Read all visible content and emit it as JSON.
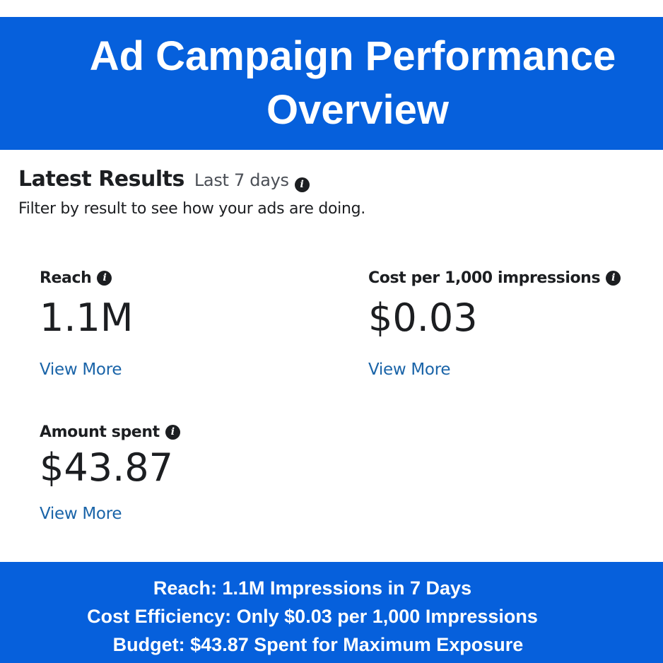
{
  "banner": {
    "title_line1": "Ad Campaign Performance",
    "title_line2": "Overview"
  },
  "results": {
    "heading": "Latest Results",
    "period": "Last 7 days",
    "subtitle": "Filter by result to see how your ads are doing.",
    "info_glyph": "i"
  },
  "metrics": [
    {
      "label": "Reach",
      "value": "1.1M",
      "link": "View More"
    },
    {
      "label": "Cost per 1,000 impressions",
      "value": "$0.03",
      "link": "View More"
    },
    {
      "label": "Amount spent",
      "value": "$43.87",
      "link": "View More"
    }
  ],
  "summary": {
    "line1": "Reach: 1.1M Impressions in 7 Days",
    "line2": "Cost Efficiency: Only $0.03 per 1,000 Impressions",
    "line3": "Budget: $43.87 Spent for Maximum Exposure"
  },
  "colors": {
    "banner_blue": "#0660dc",
    "link_blue": "#1a64a8",
    "text_dark": "#1c1e21"
  },
  "icons": [
    "info-icon"
  ]
}
